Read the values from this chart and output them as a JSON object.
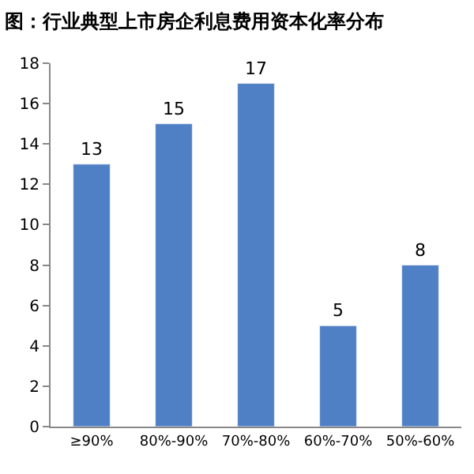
{
  "chart_data": {
    "type": "bar",
    "title": "图：行业典型上市房企利息费用资本化率分布",
    "categories": [
      "≥90%",
      "80%-90%",
      "70%-80%",
      "60%-70%",
      "50%-60%"
    ],
    "values": [
      13,
      15,
      17,
      5,
      8
    ],
    "color": "#4f7fc4",
    "ylim": [
      0,
      18
    ],
    "yticks": [
      0,
      2,
      4,
      6,
      8,
      10,
      12,
      14,
      16,
      18
    ],
    "data_labels": true
  }
}
